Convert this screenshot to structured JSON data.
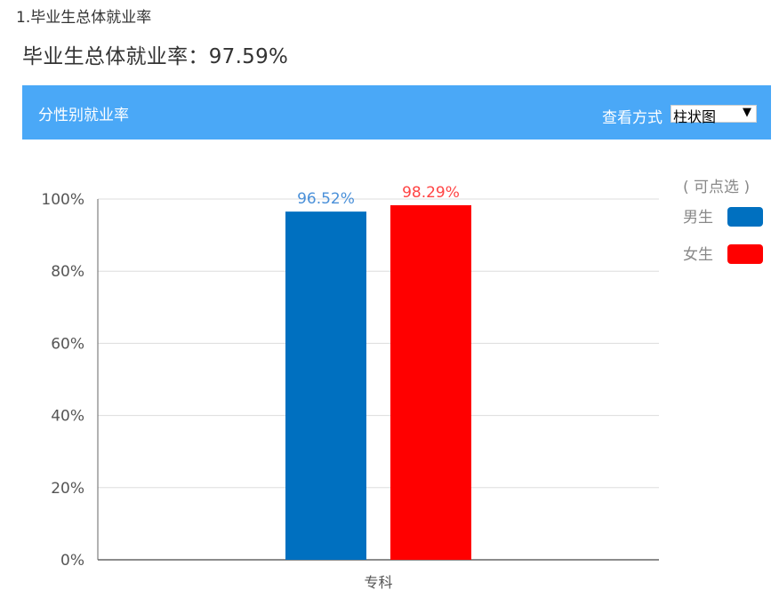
{
  "heading": "1.毕业生总体就业率",
  "summary": "毕业生总体就业率：97.59%",
  "panel": {
    "title": "分性别就业率",
    "view_label": "查看方式",
    "view_selected": "柱状图"
  },
  "legend": {
    "hint": "( 可点选 )",
    "items": [
      {
        "label": "男生",
        "color": "#0070c0"
      },
      {
        "label": "女生",
        "color": "#ff0000"
      }
    ]
  },
  "chart_data": {
    "type": "bar",
    "categories": [
      "专科"
    ],
    "series": [
      {
        "name": "男生",
        "values": [
          96.52
        ],
        "labels": [
          "96.52%"
        ],
        "color": "#0070c0",
        "label_color": "#4a90d9"
      },
      {
        "name": "女生",
        "values": [
          98.29
        ],
        "labels": [
          "98.29%"
        ],
        "color": "#ff0000",
        "label_color": "#ff4444"
      }
    ],
    "yticks": [
      "0%",
      "20%",
      "40%",
      "60%",
      "80%",
      "100%"
    ],
    "ylim": [
      0,
      100
    ],
    "grid": true,
    "legend_position": "top-right"
  }
}
